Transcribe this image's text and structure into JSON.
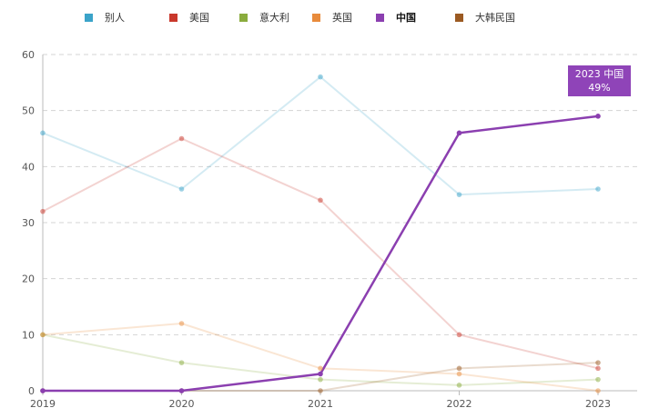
{
  "chart_data": {
    "type": "line",
    "title": "",
    "xlabel": "",
    "ylabel": "",
    "x": [
      "2019",
      "2020",
      "2021",
      "2022",
      "2023"
    ],
    "ylim": [
      0,
      60
    ],
    "yticks": [
      "0",
      "10",
      "20",
      "30",
      "40",
      "50",
      "60"
    ],
    "grid": true,
    "legend_position": "top",
    "highlighted_series": "中国",
    "series": [
      {
        "name": "别人",
        "color": "#3ba3c9",
        "values": [
          46,
          36,
          56,
          35,
          36
        ]
      },
      {
        "name": "美国",
        "color": "#c9382c",
        "values": [
          32,
          45,
          34,
          10,
          4
        ]
      },
      {
        "name": "意大利",
        "color": "#8aac3e",
        "values": [
          10,
          5,
          2,
          1,
          2
        ]
      },
      {
        "name": "英国",
        "color": "#e88b3c",
        "values": [
          10,
          12,
          4,
          3,
          0
        ]
      },
      {
        "name": "中国",
        "color": "#8b3fb0",
        "values": [
          0,
          0,
          3,
          46,
          49
        ]
      },
      {
        "name": "大韩民国",
        "color": "#9b5a22",
        "values": [
          0,
          0,
          0,
          4,
          5
        ]
      }
    ],
    "tooltip": {
      "line1": "2023 中国",
      "line2": "49%"
    }
  }
}
